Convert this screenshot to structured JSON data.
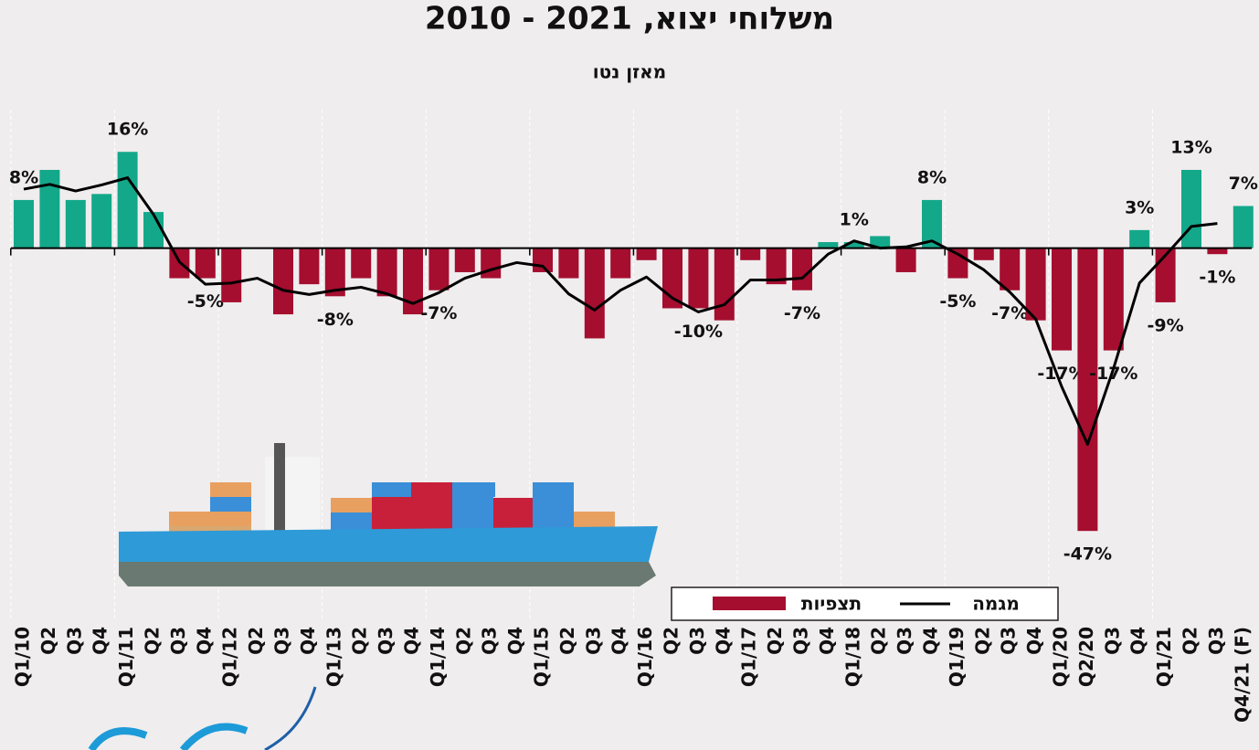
{
  "chart_data": {
    "type": "bar",
    "title": "משלוחי יצוא, 2021 - 2010",
    "subtitle": "מאזן נטו",
    "categories": [
      "Q1/10",
      "Q2",
      "Q3",
      "Q4",
      "Q1/11",
      "Q2",
      "Q3",
      "Q4",
      "Q1/12",
      "Q2",
      "Q3",
      "Q4",
      "Q1/13",
      "Q2",
      "Q3",
      "Q4",
      "Q1/14",
      "Q2",
      "Q3",
      "Q4",
      "Q1/15",
      "Q2",
      "Q3",
      "Q4",
      "Q1/16",
      "Q2",
      "Q3",
      "Q4",
      "Q1/17",
      "Q2",
      "Q3",
      "Q4",
      "Q1/18",
      "Q2",
      "Q3",
      "Q4",
      "Q1/19",
      "Q2",
      "Q3",
      "Q4",
      "Q1/20",
      "Q2/20",
      "Q3",
      "Q4",
      "Q1/21",
      "Q2",
      "Q3",
      "Q4/21 (F)"
    ],
    "series": [
      {
        "name": "תצפיות",
        "type": "bar",
        "color": "#a50e2f",
        "positive_color": "#14a88a",
        "values": [
          8,
          13,
          8,
          9,
          16,
          6,
          -5,
          -5,
          -9,
          0,
          -11,
          -6,
          -8,
          -5,
          -8,
          -11,
          -7,
          -4,
          -5,
          0,
          -4,
          -5,
          -15,
          -5,
          -2,
          -10,
          -10,
          -12,
          -2,
          -6,
          -7,
          1,
          1,
          2,
          -4,
          8,
          -5,
          -2,
          -7,
          -12,
          -17,
          -47,
          -17,
          3,
          -9,
          13,
          -1,
          7
        ],
        "value_labels": [
          "8%",
          null,
          null,
          null,
          "16%",
          null,
          null,
          "-5%",
          null,
          null,
          null,
          null,
          "-8%",
          null,
          null,
          null,
          "-7%",
          null,
          null,
          null,
          null,
          null,
          null,
          null,
          null,
          null,
          "-10%",
          null,
          null,
          null,
          "-7%",
          null,
          "1%",
          null,
          null,
          "8%",
          "-5%",
          null,
          "-7%",
          null,
          "-17%",
          "-47%",
          "-17%",
          "3%",
          "-9%",
          "13%",
          "-1%",
          "7%"
        ]
      },
      {
        "name": "מגמה",
        "type": "line",
        "color": "#000000",
        "values": [
          9.8,
          10.6,
          9.5,
          10.5,
          11.7,
          5.6,
          -2.3,
          -6,
          -5.8,
          -5,
          -7,
          -7.7,
          -7,
          -6.5,
          -7.6,
          -9.2,
          -7.4,
          -5,
          -3.6,
          -2.4,
          -3,
          -7.6,
          -10.3,
          -7,
          -4.8,
          -8.3,
          -10.6,
          -9.4,
          -5.3,
          -5.3,
          -5,
          -1,
          1.2,
          0,
          0.2,
          1.2,
          -1,
          -3.6,
          -7.3,
          -11.8,
          -23,
          -32.6,
          -20,
          -5.8,
          -1.2,
          3.6,
          4.1,
          null
        ]
      }
    ],
    "ylim": [
      -62,
      21.5
    ]
  }
}
